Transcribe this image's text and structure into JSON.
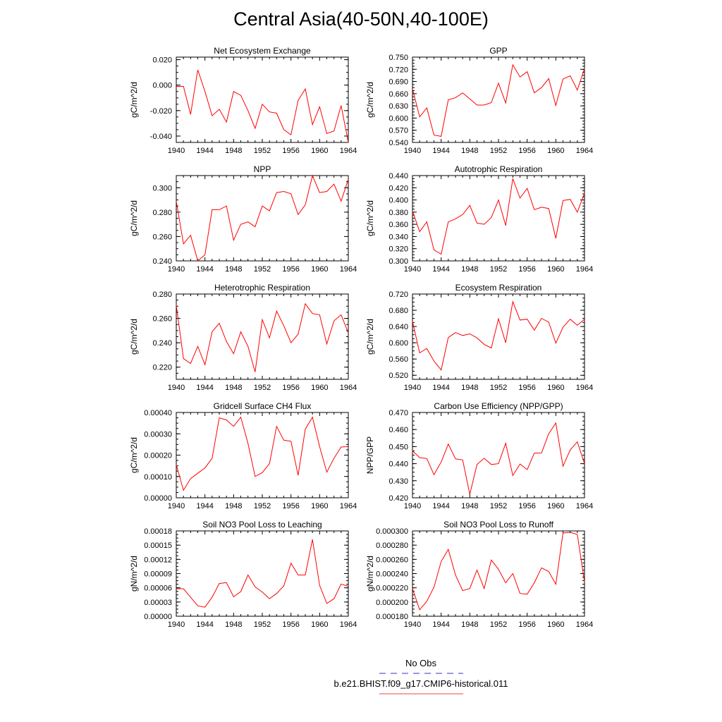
{
  "figure": {
    "title": "Central Asia(40-50N,40-100E)"
  },
  "legend": {
    "entries": [
      {
        "label": "No Obs",
        "color": "#3333cc",
        "style": "dashed"
      },
      {
        "label": "b.e21.BHIST.f09_g17.CMIP6-historical.011",
        "color": "#e8474a",
        "style": "solid"
      }
    ]
  },
  "colors": {
    "series": "#ff0000",
    "axis": "#000000"
  },
  "chart_data": [
    {
      "type": "line",
      "title": "Net Ecosystem Exchange",
      "ylabel": "gC/m^2/d",
      "xlim": [
        1940,
        1964
      ],
      "x_ticks": [
        "1940",
        "1944",
        "1948",
        "1952",
        "1956",
        "1960",
        "1964"
      ],
      "ylim": [
        -0.045,
        0.022
      ],
      "y_ticks": [
        "-0.040",
        "-0.020",
        "0.000",
        "0.020"
      ],
      "y_tick_values": [
        -0.04,
        -0.02,
        0.0,
        0.02
      ],
      "series": [
        {
          "x": [
            1940,
            1941,
            1942,
            1943,
            1944,
            1945,
            1946,
            1947,
            1948,
            1949,
            1950,
            1951,
            1952,
            1953,
            1954,
            1955,
            1956,
            1957,
            1958,
            1959,
            1960,
            1961,
            1962,
            1963,
            1964
          ],
          "values": [
            -0.001,
            -0.001,
            -0.023,
            0.012,
            -0.005,
            -0.024,
            -0.019,
            -0.029,
            -0.005,
            -0.008,
            -0.02,
            -0.034,
            -0.015,
            -0.021,
            -0.022,
            -0.035,
            -0.039,
            -0.012,
            -0.003,
            -0.031,
            -0.017,
            -0.038,
            -0.036,
            -0.016,
            -0.045
          ]
        }
      ]
    },
    {
      "type": "line",
      "title": "GPP",
      "ylabel": "gC/m^2/d",
      "xlim": [
        1940,
        1964
      ],
      "x_ticks": [
        "1940",
        "1944",
        "1948",
        "1952",
        "1956",
        "1960",
        "1964"
      ],
      "ylim": [
        0.54,
        0.75
      ],
      "y_ticks": [
        "0.540",
        "0.570",
        "0.600",
        "0.630",
        "0.660",
        "0.690",
        "0.720",
        "0.750"
      ],
      "y_tick_values": [
        0.54,
        0.57,
        0.6,
        0.63,
        0.66,
        0.69,
        0.72,
        0.75
      ],
      "series": [
        {
          "x": [
            1940,
            1941,
            1942,
            1943,
            1944,
            1945,
            1946,
            1947,
            1948,
            1949,
            1950,
            1951,
            1952,
            1953,
            1954,
            1955,
            1956,
            1957,
            1958,
            1959,
            1960,
            1961,
            1962,
            1963,
            1964
          ],
          "values": [
            0.672,
            0.603,
            0.625,
            0.558,
            0.555,
            0.645,
            0.65,
            0.662,
            0.647,
            0.632,
            0.632,
            0.638,
            0.686,
            0.637,
            0.731,
            0.701,
            0.714,
            0.662,
            0.675,
            0.697,
            0.631,
            0.696,
            0.704,
            0.669,
            0.722
          ]
        }
      ]
    },
    {
      "type": "line",
      "title": "NPP",
      "ylabel": "gC/m^2/d",
      "xlim": [
        1940,
        1964
      ],
      "x_ticks": [
        "1940",
        "1944",
        "1948",
        "1952",
        "1956",
        "1960",
        "1964"
      ],
      "ylim": [
        0.24,
        0.31
      ],
      "y_ticks": [
        "0.240",
        "0.260",
        "0.280",
        "0.300"
      ],
      "y_tick_values": [
        0.24,
        0.26,
        0.28,
        0.3
      ],
      "series": [
        {
          "x": [
            1940,
            1941,
            1942,
            1943,
            1944,
            1945,
            1946,
            1947,
            1948,
            1949,
            1950,
            1951,
            1952,
            1953,
            1954,
            1955,
            1956,
            1957,
            1958,
            1959,
            1960,
            1961,
            1962,
            1963,
            1964
          ],
          "values": [
            0.289,
            0.254,
            0.261,
            0.24,
            0.245,
            0.282,
            0.282,
            0.285,
            0.257,
            0.27,
            0.272,
            0.268,
            0.285,
            0.281,
            0.296,
            0.297,
            0.295,
            0.278,
            0.286,
            0.31,
            0.296,
            0.297,
            0.303,
            0.289,
            0.307
          ]
        }
      ]
    },
    {
      "type": "line",
      "title": "Autotrophic Respiration",
      "ylabel": "gC/m^2/d",
      "xlim": [
        1940,
        1964
      ],
      "x_ticks": [
        "1940",
        "1944",
        "1948",
        "1952",
        "1956",
        "1960",
        "1964"
      ],
      "ylim": [
        0.3,
        0.44
      ],
      "y_ticks": [
        "0.300",
        "0.320",
        "0.340",
        "0.360",
        "0.380",
        "0.400",
        "0.420",
        "0.440"
      ],
      "y_tick_values": [
        0.3,
        0.32,
        0.34,
        0.36,
        0.38,
        0.4,
        0.42,
        0.44
      ],
      "series": [
        {
          "x": [
            1940,
            1941,
            1942,
            1943,
            1944,
            1945,
            1946,
            1947,
            1948,
            1949,
            1950,
            1951,
            1952,
            1953,
            1954,
            1955,
            1956,
            1957,
            1958,
            1959,
            1960,
            1961,
            1962,
            1963,
            1964
          ],
          "values": [
            0.382,
            0.348,
            0.364,
            0.318,
            0.311,
            0.364,
            0.369,
            0.376,
            0.391,
            0.362,
            0.36,
            0.371,
            0.4,
            0.358,
            0.435,
            0.403,
            0.419,
            0.384,
            0.388,
            0.386,
            0.337,
            0.399,
            0.401,
            0.38,
            0.411
          ]
        }
      ]
    },
    {
      "type": "line",
      "title": "Heterotrophic Respiration",
      "ylabel": "gC/m^2/d",
      "xlim": [
        1940,
        1964
      ],
      "x_ticks": [
        "1940",
        "1944",
        "1948",
        "1952",
        "1956",
        "1960",
        "1964"
      ],
      "ylim": [
        0.21,
        0.28
      ],
      "y_ticks": [
        "0.220",
        "0.240",
        "0.260",
        "0.280"
      ],
      "y_tick_values": [
        0.22,
        0.24,
        0.26,
        0.28
      ],
      "series": [
        {
          "x": [
            1940,
            1941,
            1942,
            1943,
            1944,
            1945,
            1946,
            1947,
            1948,
            1949,
            1950,
            1951,
            1952,
            1953,
            1954,
            1955,
            1956,
            1957,
            1958,
            1959,
            1960,
            1961,
            1962,
            1963,
            1964
          ],
          "values": [
            0.271,
            0.227,
            0.223,
            0.237,
            0.222,
            0.249,
            0.256,
            0.241,
            0.231,
            0.249,
            0.237,
            0.216,
            0.259,
            0.244,
            0.266,
            0.254,
            0.24,
            0.247,
            0.272,
            0.264,
            0.263,
            0.239,
            0.258,
            0.263,
            0.248
          ]
        }
      ]
    },
    {
      "type": "line",
      "title": "Ecosystem Respiration",
      "ylabel": "gC/m^2/d",
      "xlim": [
        1940,
        1964
      ],
      "x_ticks": [
        "1940",
        "1944",
        "1948",
        "1952",
        "1956",
        "1960",
        "1964"
      ],
      "ylim": [
        0.51,
        0.72
      ],
      "y_ticks": [
        "0.520",
        "0.560",
        "0.600",
        "0.640",
        "0.680",
        "0.720"
      ],
      "y_tick_values": [
        0.52,
        0.56,
        0.6,
        0.64,
        0.68,
        0.72
      ],
      "series": [
        {
          "x": [
            1940,
            1941,
            1942,
            1943,
            1944,
            1945,
            1946,
            1947,
            1948,
            1949,
            1950,
            1951,
            1952,
            1953,
            1954,
            1955,
            1956,
            1957,
            1958,
            1959,
            1960,
            1961,
            1962,
            1963,
            1964
          ],
          "values": [
            0.653,
            0.575,
            0.586,
            0.555,
            0.533,
            0.613,
            0.625,
            0.618,
            0.622,
            0.612,
            0.596,
            0.587,
            0.659,
            0.6,
            0.701,
            0.656,
            0.658,
            0.631,
            0.66,
            0.651,
            0.599,
            0.638,
            0.658,
            0.643,
            0.658
          ]
        }
      ]
    },
    {
      "type": "line",
      "title": "Gridcell Surface CH4 Flux",
      "ylabel": "gC/m^2/d",
      "xlim": [
        1940,
        1964
      ],
      "x_ticks": [
        "1940",
        "1944",
        "1948",
        "1952",
        "1956",
        "1960",
        "1964"
      ],
      "ylim": [
        0.0,
        0.0004
      ],
      "y_ticks": [
        "0.00000",
        "0.00010",
        "0.00020",
        "0.00030",
        "0.00040"
      ],
      "y_tick_values": [
        0.0,
        0.0001,
        0.0002,
        0.0003,
        0.0004
      ],
      "series": [
        {
          "x": [
            1940,
            1941,
            1942,
            1943,
            1944,
            1945,
            1946,
            1947,
            1948,
            1949,
            1950,
            1951,
            1952,
            1953,
            1954,
            1955,
            1956,
            1957,
            1958,
            1959,
            1960,
            1961,
            1962,
            1963,
            1964
          ],
          "values": [
            0.000155,
            3.5e-05,
            9e-05,
            0.000115,
            0.00014,
            0.000185,
            0.000375,
            0.000365,
            0.000335,
            0.000378,
            0.000255,
            0.0001,
            0.000118,
            0.00016,
            0.000335,
            0.00027,
            0.000265,
            0.000105,
            0.000322,
            0.000378,
            0.00024,
            0.00012,
            0.000185,
            0.000238,
            0.00024
          ]
        }
      ]
    },
    {
      "type": "line",
      "title": "Carbon Use Efficiency (NPP/GPP)",
      "ylabel": "NPP/GPP",
      "xlim": [
        1940,
        1964
      ],
      "x_ticks": [
        "1940",
        "1944",
        "1948",
        "1952",
        "1956",
        "1960",
        "1964"
      ],
      "ylim": [
        0.42,
        0.47
      ],
      "y_ticks": [
        "0.420",
        "0.430",
        "0.440",
        "0.450",
        "0.460",
        "0.470"
      ],
      "y_tick_values": [
        0.42,
        0.43,
        0.44,
        0.45,
        0.46,
        0.47
      ],
      "series": [
        {
          "x": [
            1940,
            1941,
            1942,
            1943,
            1944,
            1945,
            1946,
            1947,
            1948,
            1949,
            1950,
            1951,
            1952,
            1953,
            1954,
            1955,
            1956,
            1957,
            1958,
            1959,
            1960,
            1961,
            1962,
            1963,
            1964
          ],
          "values": [
            0.4475,
            0.4435,
            0.443,
            0.4335,
            0.441,
            0.4515,
            0.4428,
            0.4422,
            0.422,
            0.4395,
            0.4432,
            0.4395,
            0.44,
            0.452,
            0.433,
            0.4398,
            0.4365,
            0.4462,
            0.4463,
            0.4575,
            0.4638,
            0.4385,
            0.448,
            0.4528,
            0.44
          ]
        }
      ]
    },
    {
      "type": "line",
      "title": "Soil NO3 Pool Loss to Leaching",
      "ylabel": "gN/m^2/d",
      "xlim": [
        1940,
        1964
      ],
      "x_ticks": [
        "1940",
        "1944",
        "1948",
        "1952",
        "1956",
        "1960",
        "1964"
      ],
      "ylim": [
        0.0,
        0.00018
      ],
      "y_ticks": [
        "0.00000",
        "0.00003",
        "0.00006",
        "0.00009",
        "0.00012",
        "0.00015",
        "0.00018"
      ],
      "y_tick_values": [
        0.0,
        3e-05,
        6e-05,
        9e-05,
        0.00012,
        0.00015,
        0.00018
      ],
      "series": [
        {
          "x": [
            1940,
            1941,
            1942,
            1943,
            1944,
            1945,
            1946,
            1947,
            1948,
            1949,
            1950,
            1951,
            1952,
            1953,
            1954,
            1955,
            1956,
            1957,
            1958,
            1959,
            1960,
            1961,
            1962,
            1963,
            1964
          ],
          "values": [
            5.8e-05,
            5.8e-05,
            4e-05,
            2.2e-05,
            1.9e-05,
            4e-05,
            6.9e-05,
            7.1e-05,
            4.1e-05,
            5.2e-05,
            8.7e-05,
            6.2e-05,
            5.1e-05,
            3.7e-05,
            4.8e-05,
            6.4e-05,
            0.000112,
            8.7e-05,
            8.7e-05,
            0.000162,
            6.5e-05,
            2.7e-05,
            3.7e-05,
            6.8e-05,
            6.3e-05
          ]
        }
      ]
    },
    {
      "type": "line",
      "title": "Soil NO3 Pool Loss to Runoff",
      "ylabel": "gN/m^2/d",
      "xlim": [
        1940,
        1964
      ],
      "x_ticks": [
        "1940",
        "1944",
        "1948",
        "1952",
        "1956",
        "1960",
        "1964"
      ],
      "ylim": [
        0.00018,
        0.0003
      ],
      "y_ticks": [
        "0.000180",
        "0.000200",
        "0.000220",
        "0.000240",
        "0.000260",
        "0.000280",
        "0.000300"
      ],
      "y_tick_values": [
        0.00018,
        0.0002,
        0.00022,
        0.00024,
        0.00026,
        0.00028,
        0.0003
      ],
      "series": [
        {
          "x": [
            1940,
            1941,
            1942,
            1943,
            1944,
            1945,
            1946,
            1947,
            1948,
            1949,
            1950,
            1951,
            1952,
            1953,
            1954,
            1955,
            1956,
            1957,
            1958,
            1959,
            1960,
            1961,
            1962,
            1963,
            1964
          ],
          "values": [
            0.000219,
            0.000189,
            0.000201,
            0.000221,
            0.000257,
            0.000274,
            0.000238,
            0.000216,
            0.000219,
            0.000245,
            0.000219,
            0.000259,
            0.000246,
            0.000227,
            0.00024,
            0.000212,
            0.000211,
            0.000227,
            0.000248,
            0.000243,
            0.000225,
            0.000297,
            0.000298,
            0.000295,
            0.000228
          ]
        }
      ]
    }
  ]
}
